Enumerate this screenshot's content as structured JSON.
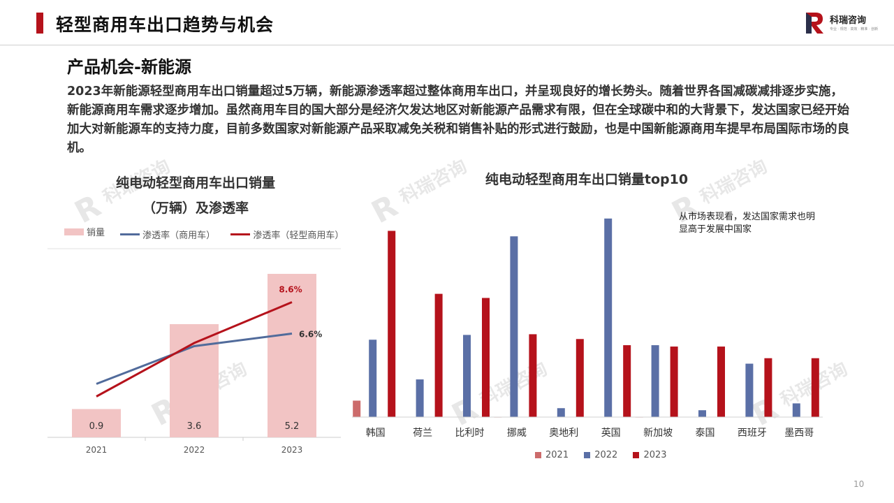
{
  "header": {
    "title": "轻型商用车出口趋势与机会"
  },
  "logo": {
    "name": "科瑞咨询",
    "sub": "专业 · 规范 · 高效 · 精准 · 创新"
  },
  "section": {
    "title": "产品机会-新能源",
    "body": "2023年新能源轻型商用车出口销量超过5万辆，新能源渗透率超过整体商用车出口，并呈现良好的增长势头。随着世界各国减碳减排逐步实施，新能源商用车需求逐步增加。虽然商用车目的国大部分是经济欠发达地区对新能源产品需求有限，但在全球碳中和的大背景下，发达国家已经开始加大对新能源车的支持力度，目前多数国家对新能源产品采取减免关税和销售补贴的形式进行鼓励，也是中国新能源商用车提早布局国际市场的良机。"
  },
  "annotation": "从市场表现看，发达国家需求也明显高于发展中国家",
  "page_number": "10",
  "colors": {
    "accent": "#b5121b",
    "bar_light": "#f2c4c4",
    "line_blue": "#516b9b",
    "series_2021": "#cc6b6b",
    "series_2022": "#5a6fa6",
    "series_2023": "#b5121b"
  },
  "chart_data": [
    {
      "type": "bar",
      "title_line1": "纯电动轻型商用车出口销量",
      "title_line2": "（万辆）及渗透率",
      "categories": [
        "2021",
        "2022",
        "2023"
      ],
      "series": [
        {
          "name": "销量",
          "kind": "bar",
          "values": [
            0.9,
            3.6,
            5.2
          ],
          "labels": [
            "0.9",
            "3.6",
            "5.2"
          ]
        },
        {
          "name": "渗透率（商用车）",
          "kind": "line",
          "values": [
            3.4,
            5.8,
            6.6
          ],
          "end_label": "6.6%"
        },
        {
          "name": "渗透率（轻型商用车）",
          "kind": "line",
          "values": [
            2.6,
            6.0,
            8.6
          ],
          "end_label": "8.6%"
        }
      ],
      "ylim": [
        0,
        6
      ],
      "rate_ylim": [
        0,
        12
      ],
      "legend_position": "top",
      "grid": false
    },
    {
      "type": "bar",
      "title": "纯电动轻型商用车出口销量top10",
      "categories": [
        "韩国",
        "荷兰",
        "比利时",
        "挪威",
        "奥地利",
        "英国",
        "新加坡",
        "泰国",
        "西班牙",
        "墨西哥"
      ],
      "series": [
        {
          "name": "2021",
          "values": [
            240,
            5,
            5,
            0,
            5,
            5,
            0,
            5,
            5,
            5
          ]
        },
        {
          "name": "2022",
          "values": [
            1130,
            550,
            1200,
            2640,
            130,
            2900,
            1050,
            100,
            780,
            200
          ]
        },
        {
          "name": "2023",
          "values": [
            2720,
            1800,
            1740,
            1210,
            1140,
            1050,
            1030,
            1030,
            860,
            860
          ]
        }
      ],
      "ylim": [
        0,
        3000
      ],
      "legend_position": "bottom",
      "grid": false
    }
  ]
}
